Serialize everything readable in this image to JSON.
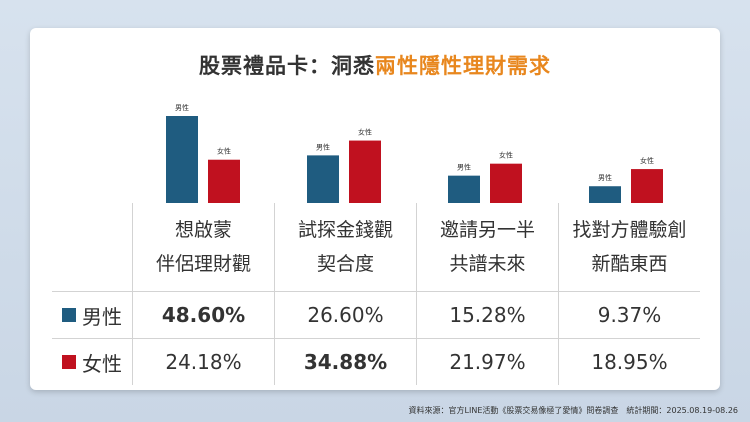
{
  "title_prefix": "股票禮品卡：洞悉",
  "title_highlight": "兩性隱性理財需求",
  "colors": {
    "male": "#1f5c80",
    "female": "#c0111f",
    "highlight": "#e8871e"
  },
  "chart_data": {
    "type": "bar",
    "categories": [
      [
        "想啟蒙",
        "伴侶理財觀"
      ],
      [
        "試探金錢觀",
        "契合度"
      ],
      [
        "邀請另一半",
        "共譜未來"
      ],
      [
        "找對方體驗創",
        "新酷東西"
      ]
    ],
    "series": [
      {
        "name": "男性",
        "values": [
          48.6,
          26.6,
          15.28,
          9.37
        ],
        "labels": [
          "48.60%",
          "26.60%",
          "15.28%",
          "9.37%"
        ]
      },
      {
        "name": "女性",
        "values": [
          24.18,
          34.88,
          21.97,
          18.95
        ],
        "labels": [
          "24.18%",
          "34.88%",
          "21.97%",
          "18.95%"
        ]
      }
    ],
    "highlight": [
      [
        true,
        false,
        false,
        false
      ],
      [
        false,
        true,
        false,
        false
      ]
    ],
    "ylim": [
      0,
      50
    ]
  },
  "source": "資料來源：官方LINE活動《股票交易像極了愛情》問卷調查　統計期間：2025.08.19-08.26"
}
